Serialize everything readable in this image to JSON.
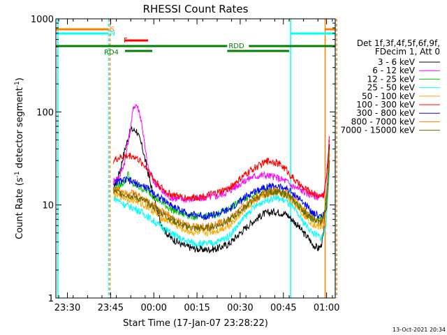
{
  "chart_data": {
    "type": "line",
    "title": "RHESSI Count Rates",
    "xlabel": "Start Time (17-Jan-07 23:28:22)",
    "ylabel_main": "Count Rate (s",
    "ylabel_sup1": "-1",
    "ylabel_mid": " detector segment",
    "ylabel_sup2": "-1",
    "ylabel_end": ")",
    "timestamp": "13-Oct-2021 20:34",
    "x_unit": "minutes since 23:28:22",
    "xlim": [
      -2,
      95
    ],
    "ylim": [
      1,
      1000
    ],
    "y_log": true,
    "x_ticks": [
      {
        "x": 2,
        "label": "23:30"
      },
      {
        "x": 17,
        "label": "23:45"
      },
      {
        "x": 32,
        "label": "00:00"
      },
      {
        "x": 47,
        "label": "00:15"
      },
      {
        "x": 62,
        "label": "00:30"
      },
      {
        "x": 77,
        "label": "00:45"
      },
      {
        "x": 92,
        "label": "01:00"
      }
    ],
    "y_ticks": [
      {
        "y": 1,
        "label": "1"
      },
      {
        "y": 10,
        "label": "10"
      },
      {
        "y": 100,
        "label": "100"
      },
      {
        "y": 1000,
        "label": "1000"
      }
    ],
    "legend": {
      "header1": "Det 1f,3f,4f,5f,6f,9f,",
      "header2": "FDecim 1, Att 0",
      "placement": "right"
    },
    "series": [
      {
        "name": "3 - 6 keV",
        "color": "#000000",
        "x": [
          18,
          19,
          20,
          22,
          24,
          26,
          28,
          30,
          32,
          34,
          36,
          38,
          42,
          46,
          50,
          54,
          58,
          62,
          66,
          70,
          74,
          78,
          80,
          82,
          84,
          86,
          87,
          88,
          89,
          90,
          91,
          92,
          93
        ],
        "y": [
          14,
          18,
          22,
          40,
          65,
          63,
          42,
          22,
          12,
          7,
          5.2,
          4.4,
          3.7,
          3.4,
          3.3,
          3.4,
          3.8,
          5,
          6.5,
          8,
          8.5,
          8,
          7,
          6,
          5,
          4.3,
          3.8,
          3.6,
          3.4,
          3.6,
          5,
          12,
          45
        ]
      },
      {
        "name": "6 - 12 keV",
        "color": "#ff00ff",
        "x": [
          18,
          20,
          22,
          24,
          25,
          26,
          27,
          28,
          29,
          30,
          32,
          34,
          36,
          38,
          42,
          46,
          50,
          54,
          58,
          62,
          66,
          70,
          74,
          78,
          80,
          82,
          84,
          86,
          88,
          90,
          91,
          92,
          93
        ],
        "y": [
          18,
          20,
          30,
          70,
          115,
          120,
          100,
          70,
          40,
          25,
          18,
          15,
          13,
          12,
          11.5,
          11.5,
          12,
          12.5,
          14,
          17,
          20,
          21,
          20,
          18,
          16,
          15,
          14,
          13,
          12.5,
          12,
          13,
          20,
          50
        ]
      },
      {
        "name": "12 - 25 keV",
        "color": "#00cc00",
        "x": [
          18,
          20,
          22,
          23,
          24,
          26,
          30,
          34,
          38,
          42,
          46,
          50,
          54,
          58,
          62,
          66,
          70,
          74,
          78,
          80,
          82,
          84,
          86,
          88,
          90,
          91,
          92,
          93
        ],
        "y": [
          15,
          16,
          18,
          22,
          17,
          16,
          14,
          11,
          9,
          8,
          7.5,
          7.5,
          8,
          9,
          11,
          13,
          14,
          14,
          13,
          11.5,
          10,
          8.5,
          7.5,
          7,
          7,
          8,
          12,
          40
        ]
      },
      {
        "name": "25 - 50 keV",
        "color": "#00ffff",
        "x": [
          18,
          20,
          22,
          24,
          26,
          30,
          34,
          38,
          42,
          46,
          50,
          54,
          58,
          62,
          66,
          70,
          74,
          78,
          80,
          82,
          84,
          86,
          88,
          90,
          91,
          92,
          93
        ],
        "y": [
          12,
          11,
          10,
          9.5,
          9,
          7.5,
          6,
          5,
          4.2,
          3.9,
          3.8,
          4,
          4.6,
          6.5,
          9,
          11,
          12,
          11,
          9.5,
          8,
          6.5,
          5.5,
          4.8,
          4.5,
          4.7,
          7,
          25
        ]
      },
      {
        "name": "50 - 100 keV",
        "color": "#ffaa00",
        "x": [
          18,
          20,
          22,
          24,
          26,
          30,
          34,
          38,
          42,
          46,
          50,
          54,
          58,
          62,
          66,
          70,
          74,
          78,
          80,
          82,
          84,
          86,
          88,
          90,
          91,
          92,
          93
        ],
        "y": [
          13,
          12.5,
          12,
          11.5,
          11,
          9.5,
          7.5,
          6.5,
          5.5,
          5,
          5,
          5.3,
          6,
          8,
          10.5,
          12.5,
          13.5,
          12.5,
          11,
          9.5,
          8,
          6.8,
          6,
          5.8,
          6,
          9,
          30
        ]
      },
      {
        "name": "100 - 300 keV",
        "color": "#ff0000",
        "x": [
          18,
          20,
          22,
          24,
          26,
          28,
          30,
          32,
          34,
          36,
          38,
          42,
          46,
          50,
          54,
          58,
          62,
          66,
          70,
          72,
          74,
          76,
          78,
          80,
          82,
          84,
          86,
          88,
          90,
          91,
          92,
          93
        ],
        "y": [
          30,
          32,
          33,
          34,
          32,
          28,
          24,
          19,
          16,
          14,
          13,
          12,
          12,
          12.5,
          13.5,
          15,
          19,
          24,
          28,
          30,
          29,
          27,
          24,
          20,
          17,
          15,
          14,
          13,
          12.5,
          13,
          20,
          55
        ]
      },
      {
        "name": "300 - 800 keV",
        "color": "#0000ff",
        "x": [
          18,
          20,
          22,
          24,
          26,
          30,
          34,
          38,
          42,
          46,
          50,
          54,
          58,
          62,
          66,
          70,
          74,
          78,
          80,
          82,
          84,
          86,
          88,
          90,
          91,
          92,
          93
        ],
        "y": [
          17,
          18,
          18.5,
          18,
          17,
          15,
          12,
          10,
          8.5,
          7.8,
          7.6,
          8,
          8.8,
          11,
          13.5,
          15.5,
          16,
          15,
          13.5,
          12,
          10.5,
          9,
          8,
          7.5,
          7.8,
          10,
          35
        ]
      },
      {
        "name": "800 - 7000 keV",
        "color": "#ff8000",
        "x": [
          18,
          20,
          22,
          24,
          26,
          30,
          34,
          38,
          42,
          46,
          50,
          54,
          58,
          62,
          66,
          70,
          74,
          78,
          80,
          82,
          84,
          86,
          88,
          90,
          91,
          92,
          93
        ],
        "y": [
          15,
          14.5,
          14,
          13.5,
          13,
          11,
          9,
          7.5,
          6.3,
          5.8,
          5.8,
          6.2,
          7,
          9,
          11.5,
          13.5,
          14.5,
          13.5,
          12,
          10.5,
          9,
          7.6,
          6.8,
          6.5,
          6.8,
          10,
          35
        ]
      },
      {
        "name": "7000 - 15000 keV",
        "color": "#6b6b00",
        "x": [
          18,
          22,
          26,
          30,
          34,
          38,
          42,
          46,
          50,
          54,
          58,
          62,
          66,
          70,
          74,
          78,
          82,
          86,
          90,
          92,
          93
        ],
        "y": [
          14,
          13,
          12,
          10.5,
          8.5,
          7,
          6,
          5.6,
          5.6,
          6,
          6.8,
          8.5,
          11,
          13,
          14,
          13,
          10,
          7.4,
          6.4,
          9,
          30
        ]
      }
    ],
    "flags": [
      {
        "label": "S",
        "color": "#ff8000",
        "y_frac": 0.11,
        "segments": [
          [
            -2,
            16.3
          ],
          [
            91.5,
            95
          ]
        ]
      },
      {
        "label": "N",
        "color": "#00ffff",
        "y_frac": 0.17,
        "segments": [
          [
            -2,
            16.3
          ],
          [
            79.5,
            95
          ]
        ]
      },
      {
        "label": "F",
        "color": "#ff0000",
        "y_frac": 0.24,
        "segments": [
          [
            22,
            30
          ]
        ]
      },
      {
        "label": "RDD",
        "color": "#008000",
        "y_frac": 0.31,
        "segments": [
          [
            -2,
            57.5
          ],
          [
            65,
            95
          ]
        ]
      },
      {
        "label": "RD4",
        "color": "#008000",
        "y_frac": 0.37,
        "segments": [
          [
            22,
            31.5
          ],
          [
            57.5,
            79
          ]
        ]
      }
    ],
    "vlines": [
      {
        "x": -1.3,
        "color": "#00ffff",
        "dashed": false
      },
      {
        "x": 16.3,
        "color": "#00ffff",
        "dashed": true
      },
      {
        "x": 16.8,
        "color": "#ff8000",
        "dashed": true
      },
      {
        "x": 79.5,
        "color": "#00ffff",
        "dashed": false
      },
      {
        "x": 91.5,
        "color": "#ff8000",
        "dashed": false
      },
      {
        "x": 95.0,
        "color": "#00ffff",
        "dashed": true
      },
      {
        "x": 95.5,
        "color": "#ff8000",
        "dashed": true
      }
    ]
  }
}
